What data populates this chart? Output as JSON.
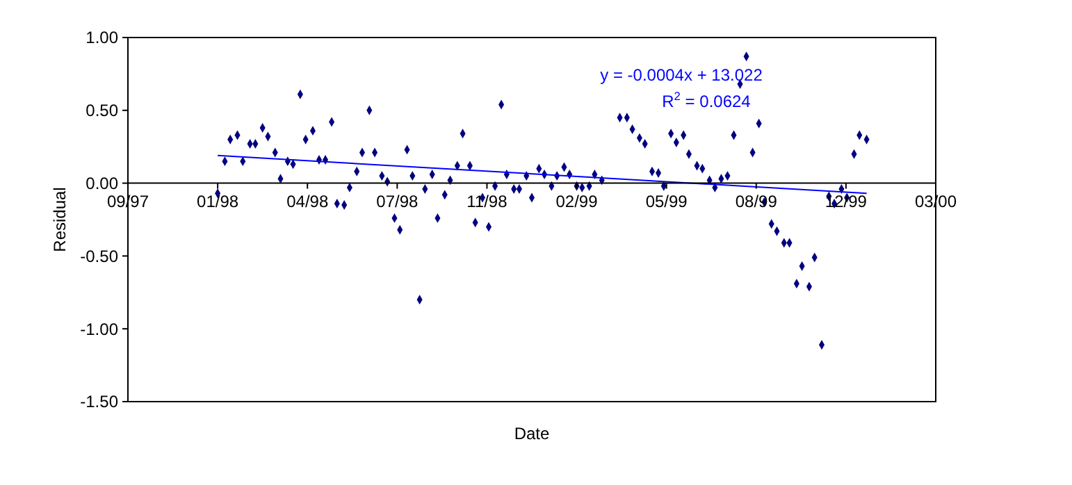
{
  "chart_data": {
    "type": "scatter",
    "xlabel": "Date",
    "ylabel": "Residual",
    "xlim": [
      "1997-09-30",
      "2000-03-18"
    ],
    "xticks": [
      {
        "value": "1997-09-30",
        "label": "09/97"
      },
      {
        "value": "1998-01-08",
        "label": "01/98"
      },
      {
        "value": "1998-04-18",
        "label": "04/98"
      },
      {
        "value": "1998-07-27",
        "label": "07/98"
      },
      {
        "value": "1998-11-04",
        "label": "11/98"
      },
      {
        "value": "1999-02-12",
        "label": "02/99"
      },
      {
        "value": "1999-05-23",
        "label": "05/99"
      },
      {
        "value": "1999-08-31",
        "label": "08/99"
      },
      {
        "value": "1999-12-09",
        "label": "12/99"
      },
      {
        "value": "2000-03-18",
        "label": "03/00"
      }
    ],
    "ylim": [
      -1.5,
      1
    ],
    "yticks": [
      {
        "value": -1.5,
        "label": "-1.50"
      },
      {
        "value": -1,
        "label": "-1.00"
      },
      {
        "value": -0.5,
        "label": "-0.50"
      },
      {
        "value": 0,
        "label": "0.00"
      },
      {
        "value": 0.5,
        "label": "0.50"
      },
      {
        "value": 1,
        "label": "1.00"
      }
    ],
    "grid": false,
    "marker": "diamond",
    "annotations": [
      "y = -0.0004x + 13.022",
      "R$^{2}$ = 0.0624"
    ],
    "series": [
      {
        "color": "#000080",
        "x": [
          "1998-01-08",
          "1998-01-16",
          "1998-01-22",
          "1998-01-30",
          "1998-02-05",
          "1998-02-13",
          "1998-02-19",
          "1998-02-27",
          "1998-03-05",
          "1998-03-13",
          "1998-03-19",
          "1998-03-27",
          "1998-04-02",
          "1998-04-10",
          "1998-04-16",
          "1998-04-24",
          "1998-05-01",
          "1998-05-08",
          "1998-05-15",
          "1998-05-21",
          "1998-05-29",
          "1998-06-04",
          "1998-06-12",
          "1998-06-18",
          "1998-06-26",
          "1998-07-02",
          "1998-07-10",
          "1998-07-16",
          "1998-07-24",
          "1998-07-30",
          "1998-08-07",
          "1998-08-13",
          "1998-08-21",
          "1998-08-27",
          "1998-09-04",
          "1998-09-10",
          "1998-09-18",
          "1998-09-24",
          "1998-10-02",
          "1998-10-08",
          "1998-10-16",
          "1998-10-22",
          "1998-10-30",
          "1998-11-06",
          "1998-11-13",
          "1998-11-20",
          "1998-11-26",
          "1998-12-04",
          "1998-12-10",
          "1998-12-18",
          "1998-12-24",
          "1999-01-01",
          "1999-01-07",
          "1999-01-15",
          "1999-01-21",
          "1999-01-29",
          "1999-02-04",
          "1999-02-12",
          "1999-02-18",
          "1999-02-26",
          "1999-03-04",
          "1999-03-12",
          "1999-04-01",
          "1999-04-09",
          "1999-04-15",
          "1999-04-23",
          "1999-04-29",
          "1999-05-07",
          "1999-05-14",
          "1999-05-20",
          "1999-05-28",
          "1999-06-03",
          "1999-06-11",
          "1999-06-17",
          "1999-06-26",
          "1999-07-02",
          "1999-07-10",
          "1999-07-16",
          "1999-07-23",
          "1999-07-30",
          "1999-08-06",
          "1999-08-13",
          "1999-08-20",
          "1999-08-27",
          "1999-09-03",
          "1999-09-09",
          "1999-09-17",
          "1999-09-23",
          "1999-10-01",
          "1999-10-07",
          "1999-10-15",
          "1999-10-21",
          "1999-10-29",
          "1999-11-04",
          "1999-11-12",
          "1999-11-20",
          "1999-11-26",
          "1999-12-04",
          "1999-12-10",
          "1999-12-18",
          "1999-12-24",
          "2000-01-01"
        ],
        "values": [
          -0.07,
          0.15,
          0.3,
          0.33,
          0.15,
          0.27,
          0.27,
          0.38,
          0.32,
          0.21,
          0.03,
          0.15,
          0.13,
          0.61,
          0.3,
          0.36,
          0.16,
          0.16,
          0.42,
          -0.14,
          -0.15,
          -0.03,
          0.08,
          0.21,
          0.5,
          0.21,
          0.05,
          0.01,
          -0.24,
          -0.32,
          0.23,
          0.05,
          -0.8,
          -0.04,
          0.06,
          -0.24,
          -0.08,
          0.02,
          0.12,
          0.34,
          0.12,
          -0.27,
          -0.1,
          -0.3,
          -0.02,
          0.54,
          0.06,
          -0.04,
          -0.04,
          0.05,
          -0.1,
          0.1,
          0.06,
          -0.02,
          0.05,
          0.11,
          0.06,
          -0.02,
          -0.03,
          -0.02,
          0.06,
          0.02,
          0.45,
          0.45,
          0.37,
          0.31,
          0.27,
          0.08,
          0.07,
          -0.02,
          0.34,
          0.28,
          0.33,
          0.2,
          0.12,
          0.1,
          0.02,
          -0.03,
          0.03,
          0.05,
          0.33,
          0.68,
          0.87,
          0.21,
          0.41,
          -0.13,
          -0.28,
          -0.33,
          -0.41,
          -0.41,
          -0.69,
          -0.57,
          -0.71,
          -0.51,
          -1.11,
          -0.09,
          -0.14,
          -0.04,
          -0.1,
          0.2,
          0.33,
          0.3
        ]
      },
      {
        "type": "line",
        "color": "#0000ff",
        "marker": "none",
        "line_style": "solid",
        "x": [
          "1998-01-08",
          "2000-01-01"
        ],
        "values": [
          0.19,
          -0.07
        ]
      }
    ]
  }
}
